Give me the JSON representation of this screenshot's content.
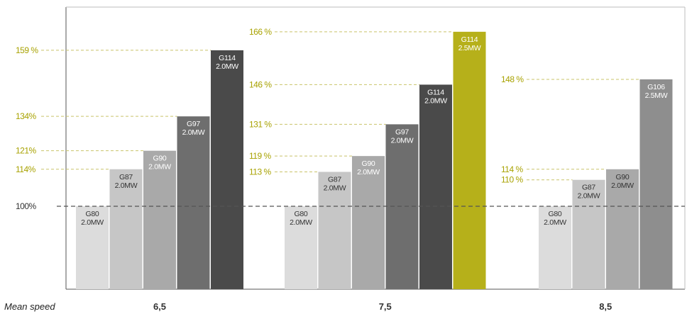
{
  "chart_data": {
    "type": "bar",
    "x_title": "Mean speed",
    "baseline_label": "100%",
    "ylim": [
      55,
      175
    ],
    "colors": {
      "accent": "#b6b01a",
      "accent_label": "#a8a200",
      "dash": "#c9c46a",
      "baseline_dash": "#555555",
      "axis": "#555555"
    },
    "groups": [
      {
        "label": "6,5",
        "bars": [
          {
            "model": "G80",
            "power": "2.0MW",
            "value": 100,
            "pct_label": "",
            "color": "#dcdcdc",
            "text_color": "#333333"
          },
          {
            "model": "G87",
            "power": "2.0MW",
            "value": 114,
            "pct_label": "114%",
            "color": "#c6c6c6",
            "text_color": "#333333"
          },
          {
            "model": "G90",
            "power": "2.0MW",
            "value": 121,
            "pct_label": "121%",
            "color": "#a9a9a9",
            "text_color": "#ffffff"
          },
          {
            "model": "G97",
            "power": "2.0MW",
            "value": 134,
            "pct_label": "134%",
            "color": "#6e6e6e",
            "text_color": "#ffffff"
          },
          {
            "model": "G114",
            "power": "2.0MW",
            "value": 159,
            "pct_label": "159 %",
            "color": "#4a4a4a",
            "text_color": "#ffffff"
          }
        ]
      },
      {
        "label": "7,5",
        "bars": [
          {
            "model": "G80",
            "power": "2.0MW",
            "value": 100,
            "pct_label": "",
            "color": "#dcdcdc",
            "text_color": "#333333"
          },
          {
            "model": "G87",
            "power": "2.0MW",
            "value": 113,
            "pct_label": "113 %",
            "color": "#c6c6c6",
            "text_color": "#333333"
          },
          {
            "model": "G90",
            "power": "2.0MW",
            "value": 119,
            "pct_label": "119 %",
            "color": "#a9a9a9",
            "text_color": "#ffffff"
          },
          {
            "model": "G97",
            "power": "2.0MW",
            "value": 131,
            "pct_label": "131 %",
            "color": "#6e6e6e",
            "text_color": "#ffffff"
          },
          {
            "model": "G114",
            "power": "2.0MW",
            "value": 146,
            "pct_label": "146 %",
            "color": "#4a4a4a",
            "text_color": "#ffffff"
          },
          {
            "model": "G114",
            "power": "2.5MW",
            "value": 166,
            "pct_label": "166 %",
            "color": "#b6b01a",
            "text_color": "#ffffff"
          }
        ]
      },
      {
        "label": "8,5",
        "bars": [
          {
            "model": "G80",
            "power": "2.0MW",
            "value": 100,
            "pct_label": "",
            "color": "#dcdcdc",
            "text_color": "#333333"
          },
          {
            "model": "G87",
            "power": "2.0MW",
            "value": 110,
            "pct_label": "110 %",
            "color": "#c6c6c6",
            "text_color": "#333333"
          },
          {
            "model": "G90",
            "power": "2.0MW",
            "value": 114,
            "pct_label": "114 %",
            "color": "#a9a9a9",
            "text_color": "#333333"
          },
          {
            "model": "G106",
            "power": "2.5MW",
            "value": 148,
            "pct_label": "148 %",
            "color": "#8e8e8e",
            "text_color": "#ffffff"
          }
        ]
      }
    ]
  }
}
